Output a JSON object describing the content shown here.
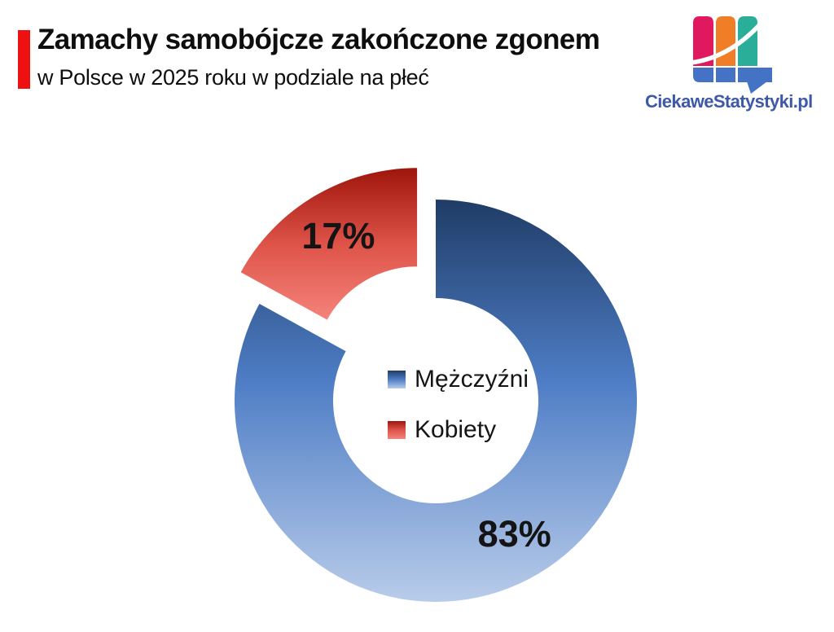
{
  "header": {
    "title": "Zamachy samobójcze zakończone zgonem",
    "subtitle": "w Polsce w 2025 roku w podziale na płeć",
    "accent_color": "#ee1111"
  },
  "logo": {
    "text": "CiekaweStatystyki.pl",
    "colors": {
      "pink": "#e0195e",
      "orange": "#f07e26",
      "teal": "#2aae99",
      "blue": "#4472c4",
      "swoosh": "#ffffff",
      "text": "#3d59a8"
    }
  },
  "chart_data": {
    "type": "pie",
    "variant": "exploded-donut",
    "title": "Zamachy samobójcze zakończone zgonem w Polsce w 2025 roku w podziale na płeć",
    "categories": [
      "Mężczyźni",
      "Kobiety"
    ],
    "values": [
      83,
      17
    ],
    "unit": "%",
    "labels_color": "#141414",
    "legend_position": "center-of-donut",
    "series": [
      {
        "name": "Mężczyźni",
        "value": 83,
        "label": "83%",
        "exploded": false,
        "gradient": [
          "#1f3c66",
          "#4e7dc5",
          "#b9ccea"
        ]
      },
      {
        "name": "Kobiety",
        "value": 17,
        "label": "17%",
        "exploded": true,
        "gradient": [
          "#9e150c",
          "#de5348",
          "#f4837b"
        ]
      }
    ]
  }
}
